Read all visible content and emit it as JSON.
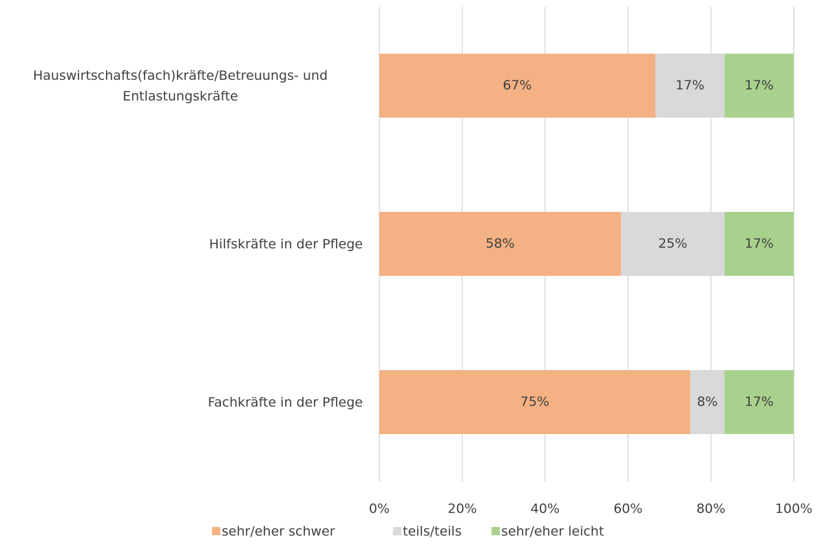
{
  "chart_data": {
    "type": "stacked-barh",
    "categories": [
      "Hauswirtschafts(fach)kräfte/Betreuungs- und Entlastungskräfte",
      "Hilfskräfte in der Pflege",
      "Fachkräfte in der Pflege"
    ],
    "series": [
      {
        "name": "sehr/eher schwer",
        "color": "#f4b183",
        "values": [
          66.6,
          58.3,
          75
        ],
        "value_labels": [
          "67%",
          "58%",
          "75%"
        ]
      },
      {
        "name": "teils/teils",
        "color": "#d9d9d9",
        "values": [
          16.7,
          25,
          8.3
        ],
        "value_labels": [
          "17%",
          "25%",
          "8%"
        ]
      },
      {
        "name": "sehr/eher leicht",
        "color": "#a9d18e",
        "values": [
          16.7,
          16.7,
          16.7
        ],
        "value_labels": [
          "17%",
          "17%",
          "17%"
        ]
      }
    ],
    "xlim": [
      0,
      100
    ],
    "xticks": [
      {
        "value": 0,
        "label": "0%"
      },
      {
        "value": 20,
        "label": "20%"
      },
      {
        "value": 40,
        "label": "40%"
      },
      {
        "value": 60,
        "label": "60%"
      },
      {
        "value": 80,
        "label": "80%"
      },
      {
        "value": 100,
        "label": "100%"
      }
    ],
    "grid": true,
    "legend": "bottom"
  }
}
